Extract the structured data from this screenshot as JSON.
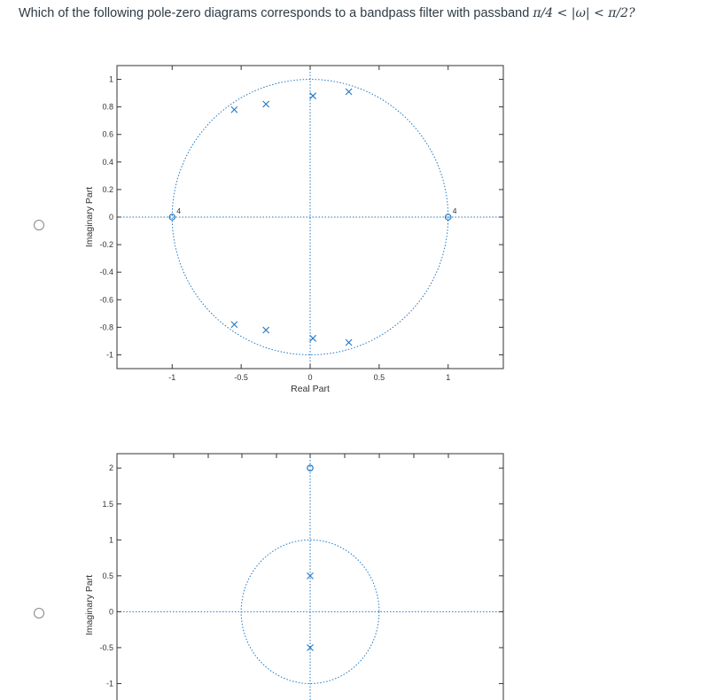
{
  "question": {
    "prefix": "Which of the following pole-zero diagrams corresponds to a bandpass filter with passband ",
    "math": "π/4 < |ω| < π/2?"
  },
  "options": [
    {
      "id": "option-1",
      "selected": false
    },
    {
      "id": "option-2",
      "selected": false
    }
  ],
  "colors": {
    "marker": "#1f77c4",
    "axis": "#333333",
    "radio": "#888888"
  },
  "chart_data": [
    {
      "type": "scatter",
      "xlabel": "Real Part",
      "ylabel": "Imaginary Part",
      "xticks": [
        "-1",
        "-0.5",
        "0",
        "0.5",
        "1"
      ],
      "yticks": [
        "1",
        "0.8",
        "0.6",
        "0.4",
        "0.2",
        "0",
        "-0.2",
        "-0.4",
        "-0.6",
        "-0.8",
        "-1"
      ],
      "xlim": [
        -1.4,
        1.4
      ],
      "ylim": [
        -1.1,
        1.1
      ],
      "unit_circle": true,
      "poles": [
        [
          -0.55,
          0.78
        ],
        [
          -0.32,
          0.82
        ],
        [
          0.02,
          0.88
        ],
        [
          0.28,
          0.91
        ],
        [
          -0.55,
          -0.78
        ],
        [
          -0.32,
          -0.82
        ],
        [
          0.02,
          -0.88
        ],
        [
          0.28,
          -0.91
        ]
      ],
      "zeros": [
        [
          -1,
          0
        ],
        [
          1,
          0
        ]
      ],
      "zero_multiplicity_labels": [
        "4",
        "4"
      ]
    },
    {
      "type": "scatter",
      "xlabel": "",
      "ylabel": "Imaginary Part",
      "xticks": [],
      "yticks": [
        "2",
        "1.5",
        "1",
        "0.5",
        "0",
        "-0.5",
        "-1"
      ],
      "xlim": [
        -2.8,
        2.8
      ],
      "ylim": [
        -1.5,
        2.2
      ],
      "unit_circle": true,
      "poles": [
        [
          0,
          0.5
        ],
        [
          0,
          -0.5
        ]
      ],
      "zeros": [
        [
          0,
          2
        ]
      ],
      "zero_multiplicity_labels": []
    }
  ]
}
